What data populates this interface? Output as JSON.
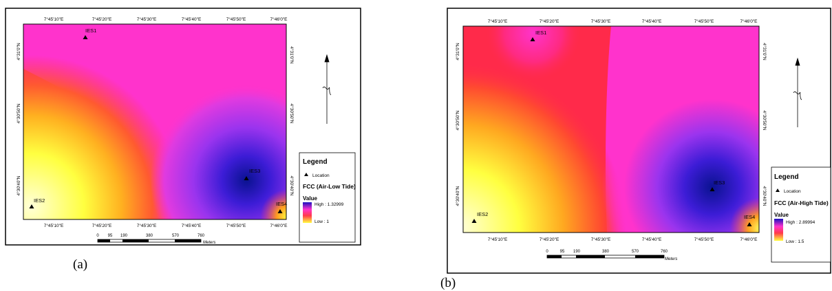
{
  "maps": [
    {
      "caption": "(a)",
      "coords_top": [
        "7°45'10\"E",
        "7°45'20\"E",
        "7°45'30\"E",
        "7°45'40\"E",
        "7°45'50\"E",
        "7°46'0\"E"
      ],
      "coords_bottom": [
        "7°45'10\"E",
        "7°45'20\"E",
        "7°45'30\"E",
        "7°45'40\"E",
        "7°45'50\"E",
        "7°46'0\"E"
      ],
      "coords_left": [
        "4°31'0\"N",
        "4°30'50\"N",
        "4°30'40\"N"
      ],
      "coords_right": [
        "4°31'0\"N",
        "4°30'50\"N",
        "4°30'40\"N"
      ],
      "stations": [
        {
          "label": "IES1"
        },
        {
          "label": "IES2"
        },
        {
          "label": "IES3"
        },
        {
          "label": "IES4"
        }
      ],
      "scale": {
        "ticks": [
          "0",
          "95",
          "190",
          "380",
          "570",
          "760"
        ],
        "unit": "Meters"
      },
      "legend": {
        "title": "Legend",
        "location_label": "Location",
        "layer": "FCC (Air-Low Tide)",
        "value_label": "Value",
        "high": "High : 1.32999",
        "low": "Low : 1"
      }
    },
    {
      "caption": "(b)",
      "coords_top": [
        "7°45'10\"E",
        "7°45'20\"E",
        "7°45'30\"E",
        "7°45'40\"E",
        "7°45'50\"E",
        "7°46'0\"E"
      ],
      "coords_bottom": [
        "7°45'10\"E",
        "7°45'20\"E",
        "7°45'30\"E",
        "7°45'40\"E",
        "7°45'50\"E",
        "7°46'0\"E"
      ],
      "coords_left": [
        "4°31'0\"N",
        "4°30'50\"N",
        "4°30'40\"N"
      ],
      "coords_right": [
        "4°31'0\"N",
        "4°30'50\"N",
        "4°30'40\"N"
      ],
      "stations": [
        {
          "label": "IES1"
        },
        {
          "label": "IES2"
        },
        {
          "label": "IES3"
        },
        {
          "label": "IES4"
        }
      ],
      "scale": {
        "ticks": [
          "0",
          "95",
          "190",
          "380",
          "570",
          "760"
        ],
        "unit": "Meters"
      },
      "legend": {
        "title": "Legend",
        "location_label": "Location",
        "layer": "FCC (Air-High Tide)",
        "value_label": "Value",
        "high": "High : 2.89994",
        "low": "Low : 1.5"
      }
    }
  ],
  "colors": {
    "yellow": "#ffff33",
    "orange": "#ff7a1e",
    "red": "#ff2a4a",
    "magenta": "#ff33cc",
    "purple": "#7a1ee6",
    "blue": "#0a1290",
    "frame": "#000000"
  },
  "north_arrow_icon": "north-arrow-icon"
}
